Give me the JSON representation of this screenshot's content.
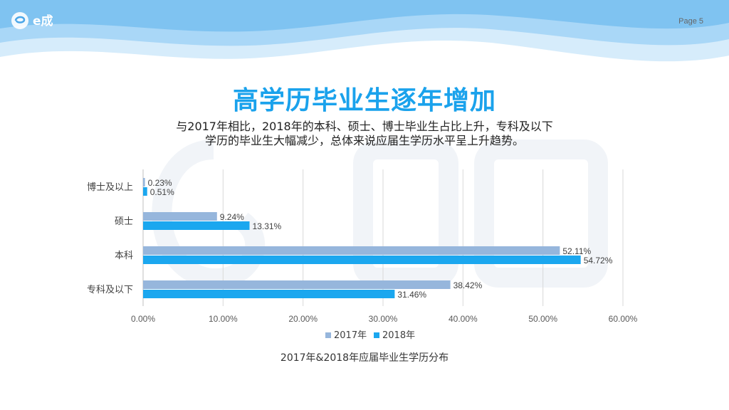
{
  "header": {
    "logo_text": "e成",
    "page_label": "Page 5"
  },
  "title": "高学历毕业生逐年增加",
  "subtitle": {
    "line1": "与2017年相比，2018年的本科、硕士、博士毕业生占比上升，专科及以下",
    "line2": "学历的毕业生大幅减少，总体来说应届生学历水平呈上升趋势。"
  },
  "caption": "2017年&2018年应届毕业生学历分布",
  "colors": {
    "accent": "#1aa2ec",
    "series_2017": "#96b6dc",
    "series_2018": "#1ba7ef"
  },
  "chart_data": {
    "type": "bar",
    "orientation": "horizontal",
    "categories": [
      "博士及以上",
      "硕士",
      "本科",
      "专科及以下"
    ],
    "series": [
      {
        "name": "2017年",
        "values": [
          0.23,
          9.24,
          52.11,
          38.42
        ],
        "labels": [
          "0.23%",
          "9.24%",
          "52.11%",
          "38.42%"
        ],
        "color": "#96b6dc"
      },
      {
        "name": "2018年",
        "values": [
          0.51,
          13.31,
          54.72,
          31.46
        ],
        "labels": [
          "0.51%",
          "13.31%",
          "54.72%",
          "31.46%"
        ],
        "color": "#1ba7ef"
      }
    ],
    "x_ticks": [
      "0.00%",
      "10.00%",
      "20.00%",
      "30.00%",
      "40.00%",
      "50.00%",
      "60.00%"
    ],
    "xlim": [
      0,
      60
    ],
    "grid": "vertical",
    "legend_position": "bottom"
  }
}
